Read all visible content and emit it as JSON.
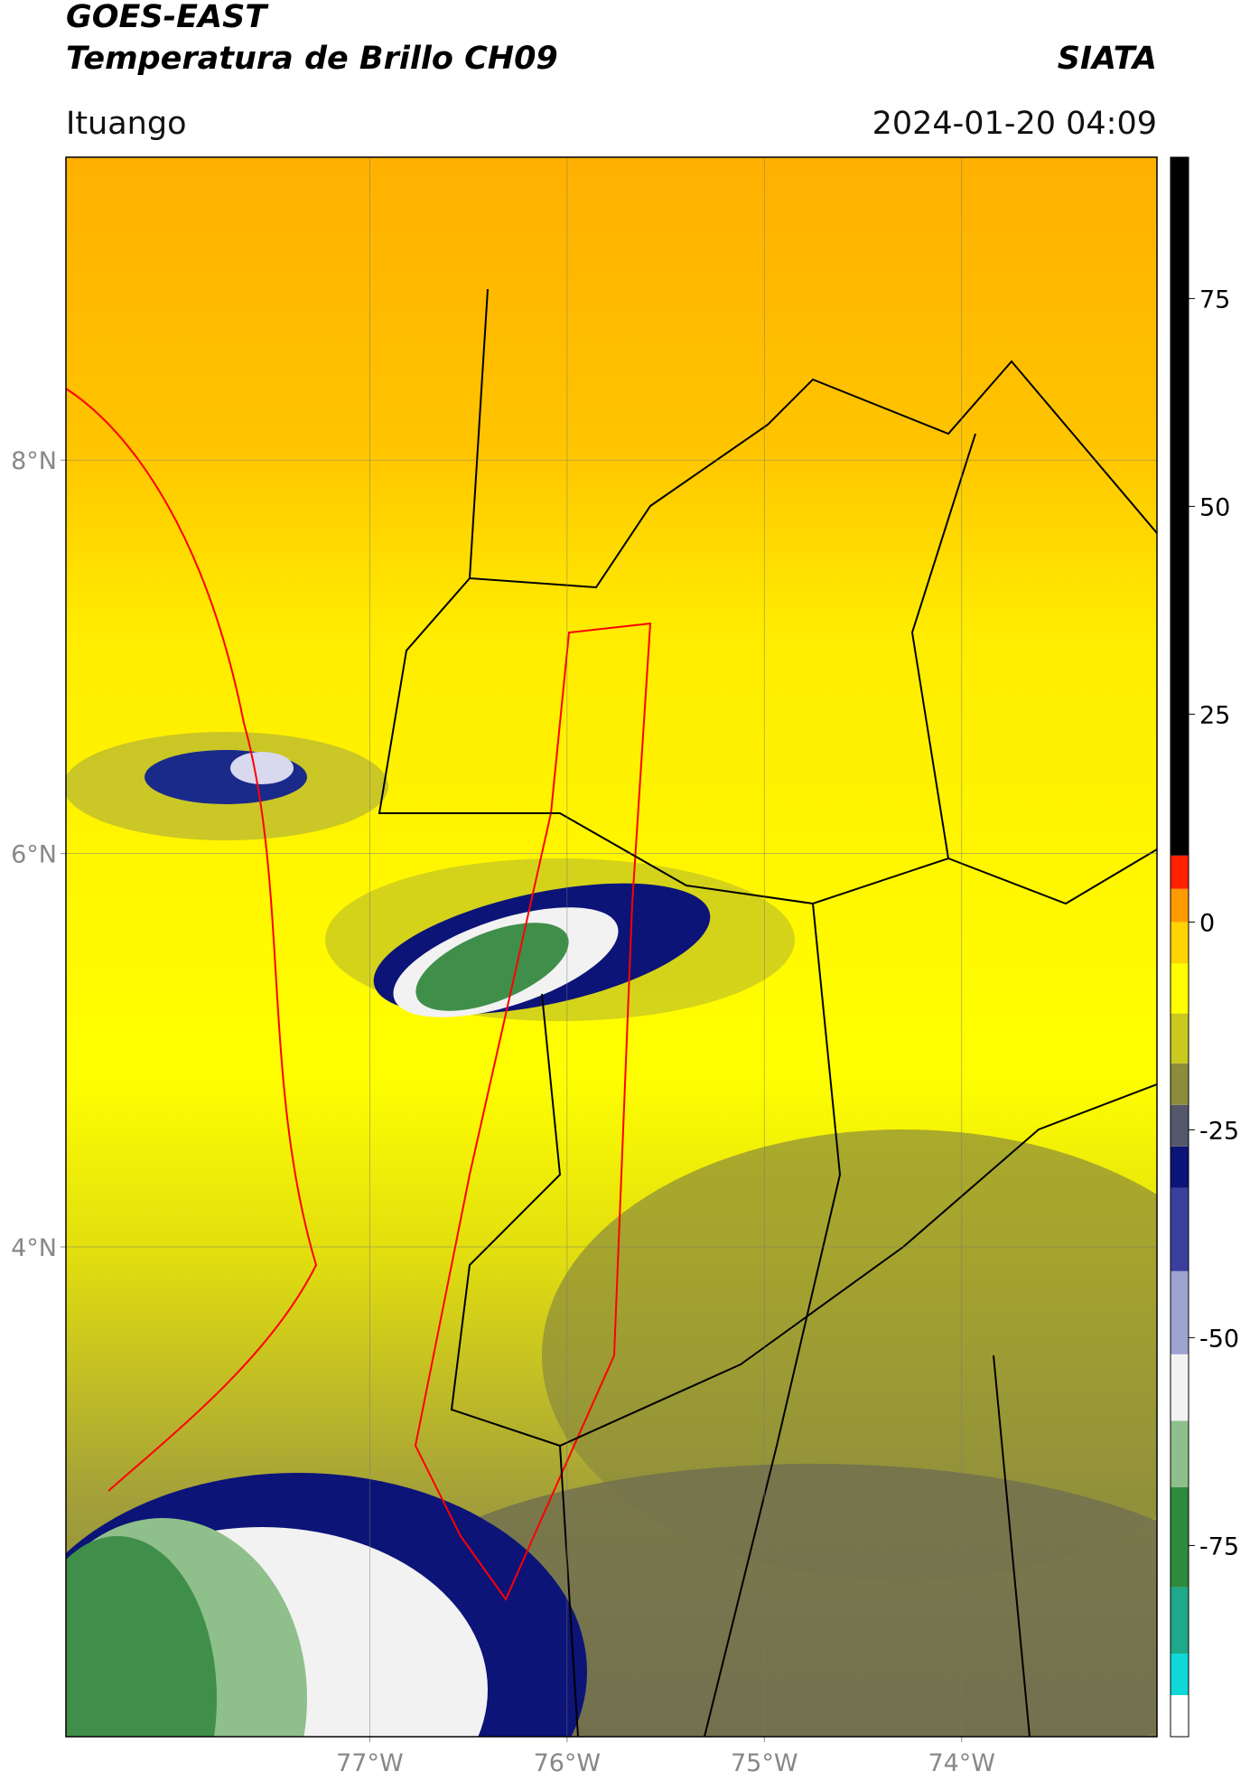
{
  "header": {
    "satellite": "GOES-EAST",
    "product": "Temperatura de Brillo CH09",
    "source": "SIATA",
    "region": "Ituango",
    "datetime": "2024-01-20 04:09"
  },
  "map": {
    "lonlim": [
      -78.54,
      -73.01
    ],
    "latlim": [
      1.51,
      9.54
    ],
    "lonticks": [
      {
        "value": -77,
        "label": "77°W"
      },
      {
        "value": -76,
        "label": "76°W"
      },
      {
        "value": -75,
        "label": "75°W"
      },
      {
        "value": -74,
        "label": "74°W"
      }
    ],
    "latticks": [
      {
        "value": 8,
        "label": "8°N"
      },
      {
        "value": 6,
        "label": "6°N"
      },
      {
        "value": 4,
        "label": "4°N"
      }
    ],
    "grid": true
  },
  "colorbar": {
    "lim": [
      -98,
      92
    ],
    "ticks": [
      75,
      50,
      25,
      0,
      -25,
      -50,
      -75
    ],
    "colormap": [
      [
        -98,
        "#ffffff"
      ],
      [
        -93,
        "#11d8d8"
      ],
      [
        -88,
        "#1fa88a"
      ],
      [
        -80,
        "#2e8b3d"
      ],
      [
        -68,
        "#8fbf8a"
      ],
      [
        -60,
        "#f2f2f2"
      ],
      [
        -52,
        "#9fa3d0"
      ],
      [
        -42,
        "#3a3f9e"
      ],
      [
        -32,
        "#0c1478"
      ],
      [
        -27,
        "#54586a"
      ],
      [
        -22,
        "#8c8c3a"
      ],
      [
        -17,
        "#c9c920"
      ],
      [
        -11,
        "#ffff00"
      ],
      [
        -5,
        "#ffd400"
      ],
      [
        0,
        "#ff9a00"
      ],
      [
        4,
        "#ff2000"
      ],
      [
        8,
        "#000000"
      ]
    ]
  }
}
